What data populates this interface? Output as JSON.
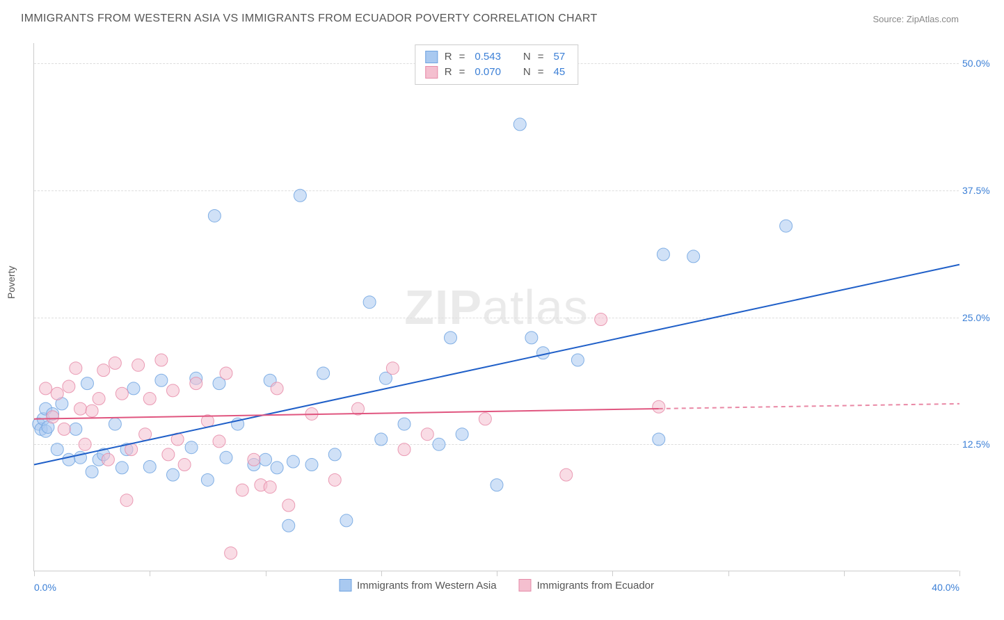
{
  "title": "IMMIGRANTS FROM WESTERN ASIA VS IMMIGRANTS FROM ECUADOR POVERTY CORRELATION CHART",
  "source_label": "Source: ",
  "source_name": "ZipAtlas.com",
  "ylabel": "Poverty",
  "watermark_a": "ZIP",
  "watermark_b": "atlas",
  "chart": {
    "type": "scatter",
    "xlim": [
      0,
      40
    ],
    "ylim": [
      0,
      52
    ],
    "xtick_positions": [
      0,
      5,
      10,
      15,
      20,
      25,
      30,
      35,
      40
    ],
    "xtick_labels_shown": {
      "0": "0.0%",
      "40": "40.0%"
    },
    "yticks": [
      12.5,
      25.0,
      37.5,
      50.0
    ],
    "ytick_labels": [
      "12.5%",
      "25.0%",
      "37.5%",
      "50.0%"
    ],
    "grid_color": "#dddddd",
    "axis_color": "#cccccc",
    "tick_label_color": "#3b7fd6",
    "background_color": "#ffffff",
    "series": [
      {
        "name": "Immigrants from Western Asia",
        "fill": "#a9c9f0",
        "stroke": "#6fa3e0",
        "regression": {
          "x1": 0,
          "y1": 10.5,
          "x2": 40,
          "y2": 30.2,
          "solid_until_x": 40,
          "color": "#1f5fc8",
          "width": 2
        },
        "R_label": "R",
        "R_value": "0.543",
        "N_label": "N",
        "N_value": "57",
        "marker_radius": 9,
        "points": [
          [
            0.2,
            14.5
          ],
          [
            0.3,
            14.0
          ],
          [
            0.4,
            15.0
          ],
          [
            0.5,
            13.8
          ],
          [
            0.5,
            16.0
          ],
          [
            0.6,
            14.2
          ],
          [
            0.8,
            15.5
          ],
          [
            1.0,
            12.0
          ],
          [
            1.2,
            16.5
          ],
          [
            1.5,
            11.0
          ],
          [
            1.8,
            14.0
          ],
          [
            2.0,
            11.2
          ],
          [
            2.3,
            18.5
          ],
          [
            2.5,
            9.8
          ],
          [
            2.8,
            11.0
          ],
          [
            3.0,
            11.5
          ],
          [
            3.5,
            14.5
          ],
          [
            3.8,
            10.2
          ],
          [
            4.0,
            12.0
          ],
          [
            4.3,
            18.0
          ],
          [
            5.0,
            10.3
          ],
          [
            5.5,
            18.8
          ],
          [
            6.0,
            9.5
          ],
          [
            6.8,
            12.2
          ],
          [
            7.0,
            19.0
          ],
          [
            7.5,
            9.0
          ],
          [
            7.8,
            35.0
          ],
          [
            8.0,
            18.5
          ],
          [
            8.3,
            11.2
          ],
          [
            8.8,
            14.5
          ],
          [
            9.5,
            10.5
          ],
          [
            10.0,
            11.0
          ],
          [
            10.2,
            18.8
          ],
          [
            10.5,
            10.2
          ],
          [
            11.0,
            4.5
          ],
          [
            11.2,
            10.8
          ],
          [
            11.5,
            37.0
          ],
          [
            12.0,
            10.5
          ],
          [
            12.5,
            19.5
          ],
          [
            13.0,
            11.5
          ],
          [
            13.5,
            5.0
          ],
          [
            14.5,
            26.5
          ],
          [
            15.0,
            13.0
          ],
          [
            15.2,
            19.0
          ],
          [
            16.0,
            14.5
          ],
          [
            17.5,
            12.5
          ],
          [
            18.0,
            23.0
          ],
          [
            18.5,
            13.5
          ],
          [
            20.0,
            8.5
          ],
          [
            21.0,
            44.0
          ],
          [
            21.5,
            23.0
          ],
          [
            22.0,
            21.5
          ],
          [
            23.5,
            20.8
          ],
          [
            27.0,
            13.0
          ],
          [
            28.5,
            31.0
          ],
          [
            32.5,
            34.0
          ],
          [
            27.2,
            31.2
          ]
        ]
      },
      {
        "name": "Immigrants from Ecuador",
        "fill": "#f4bfcf",
        "stroke": "#e68ba8",
        "regression": {
          "x1": 0,
          "y1": 15.0,
          "x2": 40,
          "y2": 16.5,
          "solid_until_x": 27,
          "color": "#e0557f",
          "width": 2
        },
        "R_label": "R",
        "R_value": "0.070",
        "N_label": "N",
        "N_value": "45",
        "marker_radius": 9,
        "points": [
          [
            0.5,
            18.0
          ],
          [
            0.8,
            15.2
          ],
          [
            1.0,
            17.5
          ],
          [
            1.3,
            14.0
          ],
          [
            1.5,
            18.2
          ],
          [
            1.8,
            20.0
          ],
          [
            2.0,
            16.0
          ],
          [
            2.2,
            12.5
          ],
          [
            2.5,
            15.8
          ],
          [
            2.8,
            17.0
          ],
          [
            3.0,
            19.8
          ],
          [
            3.2,
            11.0
          ],
          [
            3.5,
            20.5
          ],
          [
            3.8,
            17.5
          ],
          [
            4.0,
            7.0
          ],
          [
            4.2,
            12.0
          ],
          [
            4.5,
            20.3
          ],
          [
            4.8,
            13.5
          ],
          [
            5.0,
            17.0
          ],
          [
            5.5,
            20.8
          ],
          [
            5.8,
            11.5
          ],
          [
            6.0,
            17.8
          ],
          [
            6.2,
            13.0
          ],
          [
            6.5,
            10.5
          ],
          [
            7.0,
            18.5
          ],
          [
            7.5,
            14.8
          ],
          [
            8.0,
            12.8
          ],
          [
            8.3,
            19.5
          ],
          [
            8.5,
            1.8
          ],
          [
            9.0,
            8.0
          ],
          [
            9.5,
            11.0
          ],
          [
            9.8,
            8.5
          ],
          [
            10.2,
            8.3
          ],
          [
            10.5,
            18.0
          ],
          [
            11.0,
            6.5
          ],
          [
            12.0,
            15.5
          ],
          [
            13.0,
            9.0
          ],
          [
            14.0,
            16.0
          ],
          [
            15.5,
            20.0
          ],
          [
            16.0,
            12.0
          ],
          [
            17.0,
            13.5
          ],
          [
            19.5,
            15.0
          ],
          [
            23.0,
            9.5
          ],
          [
            24.5,
            24.8
          ],
          [
            27.0,
            16.2
          ]
        ]
      }
    ]
  },
  "bottom_legend": [
    {
      "label": "Immigrants from Western Asia",
      "fill": "#a9c9f0",
      "stroke": "#6fa3e0"
    },
    {
      "label": "Immigrants from Ecuador",
      "fill": "#f4bfcf",
      "stroke": "#e68ba8"
    }
  ]
}
